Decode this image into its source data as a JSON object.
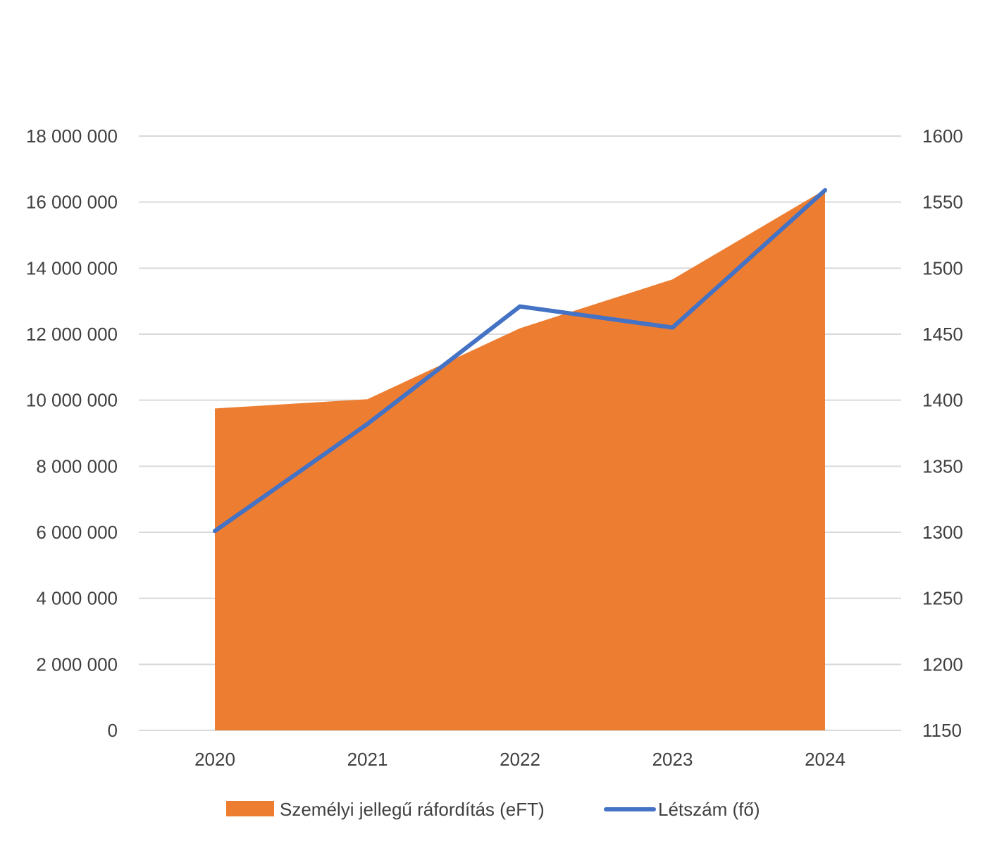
{
  "chart_data": {
    "type": "area",
    "categories": [
      "2020",
      "2021",
      "2022",
      "2023",
      "2024"
    ],
    "series": [
      {
        "name": "Személyi jellegű ráfordítás (eFT)",
        "type": "area",
        "axis": "left",
        "color": "#ED7D31",
        "values": [
          9750000,
          10030000,
          12180000,
          13660000,
          16380000
        ]
      },
      {
        "name": "Létszám (fő)",
        "type": "line",
        "axis": "right",
        "color": "#4472C4",
        "values": [
          1301,
          1382,
          1471,
          1455,
          1559
        ]
      }
    ],
    "y_left": {
      "min": 0,
      "max": 18000000,
      "ticks": [
        0,
        2000000,
        4000000,
        6000000,
        8000000,
        10000000,
        12000000,
        14000000,
        16000000,
        18000000
      ],
      "tick_labels": [
        "0",
        "2 000 000",
        "4 000 000",
        "6 000 000",
        "8 000 000",
        "10 000 000",
        "12 000 000",
        "14 000 000",
        "16 000 000",
        "18 000 000"
      ]
    },
    "y_right": {
      "min": 1150,
      "max": 1600,
      "ticks": [
        1150,
        1200,
        1250,
        1300,
        1350,
        1400,
        1450,
        1500,
        1550,
        1600
      ],
      "tick_labels": [
        "1150",
        "1200",
        "1250",
        "1300",
        "1350",
        "1400",
        "1450",
        "1500",
        "1550",
        "1600"
      ]
    },
    "grid": true,
    "legend": "bottom",
    "title": "",
    "xlabel": "",
    "ylabel": ""
  }
}
